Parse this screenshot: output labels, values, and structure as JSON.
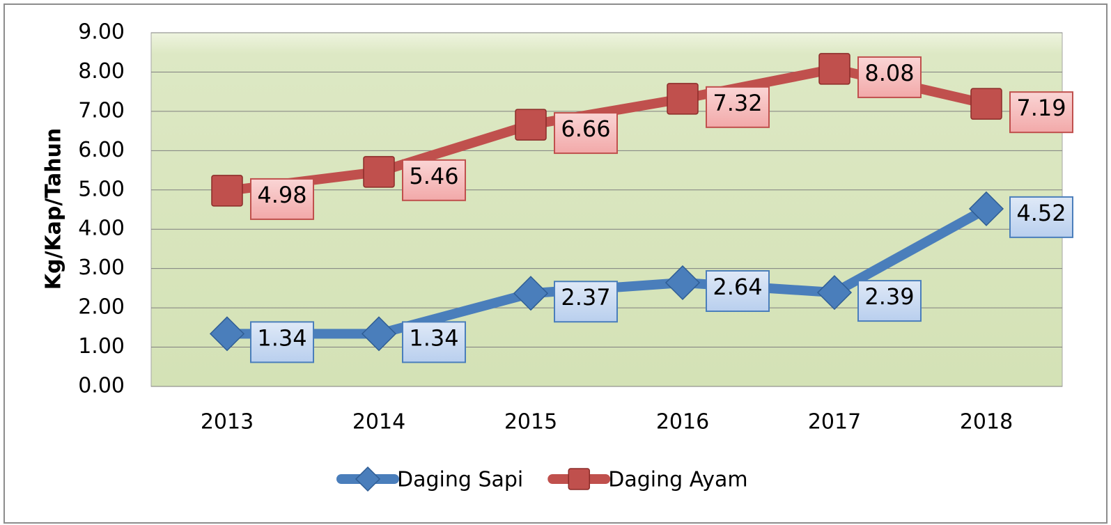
{
  "chart_data": {
    "type": "line",
    "y_label": "Kg/Kap/Tahun",
    "categories": [
      "2013",
      "2014",
      "2015",
      "2016",
      "2017",
      "2018"
    ],
    "series": [
      {
        "name": "Daging Sapi",
        "color": "#4a7ebb",
        "marker": "diamond",
        "values": [
          1.34,
          1.34,
          2.37,
          2.64,
          2.39,
          4.52
        ]
      },
      {
        "name": "Daging Ayam",
        "color": "#c0504d",
        "marker": "square",
        "values": [
          4.98,
          5.46,
          6.66,
          7.32,
          8.08,
          7.19
        ]
      }
    ],
    "ylim": [
      0,
      9
    ],
    "yticks": [
      {
        "value": 0,
        "label": "0.00"
      },
      {
        "value": 1,
        "label": "1.00"
      },
      {
        "value": 2,
        "label": "2.00"
      },
      {
        "value": 3,
        "label": "3.00"
      },
      {
        "value": 4,
        "label": "4.00"
      },
      {
        "value": 5,
        "label": "5.00"
      },
      {
        "value": 6,
        "label": "6.00"
      },
      {
        "value": 7,
        "label": "7.00"
      },
      {
        "value": 8,
        "label": "8.00"
      },
      {
        "value": 9,
        "label": "9.00"
      }
    ],
    "grid": true,
    "legend": "bottom"
  }
}
